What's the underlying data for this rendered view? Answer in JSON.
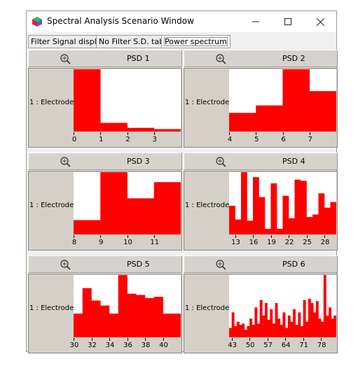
{
  "window": {
    "title": "Spectral Analysis Scenario Window",
    "minimize_glyph": "—",
    "maximize_glyph": "☐",
    "close_glyph": "✕"
  },
  "tabs": [
    {
      "label": "Filter Signal display",
      "active": false
    },
    {
      "label": "No Filter S.D. tab",
      "active": false
    },
    {
      "label": "Power spectrum",
      "active": true
    }
  ],
  "colors": {
    "bar": "#ff0000",
    "panel": "#d4d0c8",
    "plot_bg": "#ffffff"
  },
  "panels": [
    {
      "title": "PSD 1",
      "channel": "1 : Electrode",
      "zoom_icon": "zoom-icon"
    },
    {
      "title": "PSD 2",
      "channel": "1 : Electrode",
      "zoom_icon": "zoom-icon"
    },
    {
      "title": "PSD 3",
      "channel": "1 : Electrode",
      "zoom_icon": "zoom-icon"
    },
    {
      "title": "PSD 4",
      "channel": "1 : Electrode",
      "zoom_icon": "zoom-icon"
    },
    {
      "title": "PSD 5",
      "channel": "1 : Electrode",
      "zoom_icon": "zoom-icon"
    },
    {
      "title": "PSD 6",
      "channel": "1 : Electrode",
      "zoom_icon": "zoom-icon"
    }
  ],
  "chart_data": [
    {
      "type": "bar",
      "title": "PSD 1",
      "xlabel": "",
      "ylabel": "1 : Electrode",
      "xlim": [
        0,
        4
      ],
      "ylim": [
        0,
        1
      ],
      "ticks": [
        0,
        1,
        2,
        3
      ],
      "bin_width": 1,
      "x": [
        0,
        1,
        2,
        3
      ],
      "values": [
        1.0,
        0.14,
        0.06,
        0.04
      ]
    },
    {
      "type": "bar",
      "title": "PSD 2",
      "xlabel": "",
      "ylabel": "1 : Electrode",
      "xlim": [
        4,
        8
      ],
      "ylim": [
        0,
        1
      ],
      "ticks": [
        4,
        5,
        6,
        7
      ],
      "bin_width": 1,
      "x": [
        4,
        5,
        6,
        7
      ],
      "values": [
        0.3,
        0.42,
        1.0,
        0.65
      ]
    },
    {
      "type": "bar",
      "title": "PSD 3",
      "xlabel": "",
      "ylabel": "1 : Electrode",
      "xlim": [
        8,
        12
      ],
      "ylim": [
        0,
        1
      ],
      "ticks": [
        8,
        9,
        10,
        11
      ],
      "bin_width": 1,
      "x": [
        8,
        9,
        10,
        11
      ],
      "values": [
        0.23,
        1.0,
        0.58,
        0.84
      ]
    },
    {
      "type": "bar",
      "title": "PSD 4",
      "xlabel": "",
      "ylabel": "1 : Electrode",
      "xlim": [
        12,
        30
      ],
      "ylim": [
        0,
        1
      ],
      "ticks": [
        13,
        16,
        19,
        22,
        25,
        28
      ],
      "bin_width": 1,
      "x": [
        12,
        13,
        14,
        15,
        16,
        17,
        18,
        19,
        20,
        21,
        22,
        23,
        24,
        25,
        26,
        27,
        28,
        29
      ],
      "values": [
        0.46,
        0.24,
        1.0,
        0.22,
        0.92,
        0.6,
        0.09,
        0.82,
        0.09,
        0.62,
        0.26,
        0.88,
        0.86,
        0.28,
        0.32,
        0.66,
        0.43,
        0.52
      ]
    },
    {
      "type": "bar",
      "title": "PSD 5",
      "xlabel": "",
      "ylabel": "1 : Electrode",
      "xlim": [
        30,
        42
      ],
      "ylim": [
        0,
        1
      ],
      "ticks": [
        30,
        32,
        34,
        36,
        38,
        40
      ],
      "bin_width": 1,
      "x": [
        30,
        31,
        32,
        33,
        34,
        35,
        36,
        37,
        38,
        39,
        40,
        41
      ],
      "values": [
        0.38,
        0.79,
        0.59,
        0.51,
        0.38,
        1.0,
        0.7,
        0.68,
        0.63,
        0.65,
        0.38,
        0.38
      ]
    },
    {
      "type": "bar",
      "title": "PSD 6",
      "xlabel": "",
      "ylabel": "1 : Electrode",
      "xlim": [
        42,
        84
      ],
      "ylim": [
        0,
        1
      ],
      "ticks": [
        43,
        50,
        57,
        64,
        71,
        78
      ],
      "bin_width": 1,
      "values": [
        0.15,
        0.4,
        0.18,
        0.25,
        0.2,
        0.22,
        0.12,
        0.18,
        0.3,
        0.2,
        0.48,
        0.22,
        0.6,
        0.35,
        0.55,
        0.28,
        0.45,
        0.22,
        0.55,
        0.3,
        0.2,
        0.4,
        0.15,
        0.35,
        0.25,
        0.45,
        0.2,
        0.4,
        0.18,
        0.6,
        0.25,
        0.62,
        0.55,
        0.4,
        0.58,
        0.3,
        0.25,
        1.0,
        0.35,
        0.48,
        0.3,
        0.35
      ],
      "x_start": 42
    }
  ]
}
